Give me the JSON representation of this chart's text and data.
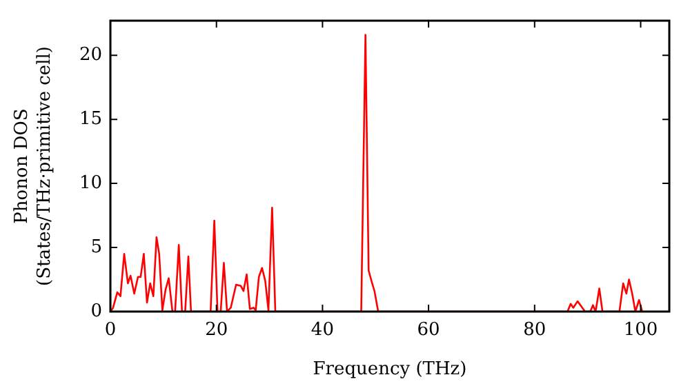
{
  "chart_data": {
    "type": "line",
    "xlabel": "Frequency (THz)",
    "ylabel": "Phonon DOS\n(States/THz·primitive cell)",
    "xlim": [
      0,
      105.4
    ],
    "xticks": [
      0,
      20,
      40,
      60,
      80,
      100
    ],
    "ylim": [
      0,
      22.7
    ],
    "yticks": [
      0,
      5,
      10,
      15,
      20
    ],
    "grid": false,
    "legend": false,
    "marker": "none",
    "line_style": "solid",
    "x": [
      0,
      0.5,
      1.3,
      1.9,
      2.6,
      3.3,
      3.8,
      4.5,
      5.2,
      5.7,
      6.3,
      6.9,
      7.5,
      8.1,
      8.7,
      9.2,
      9.8,
      10.4,
      11.0,
      11.7,
      12.2,
      12.9,
      13.5,
      14.1,
      14.7,
      15.2,
      18.9,
      19.6,
      20.2,
      20.8,
      21.4,
      22.0,
      22.7,
      23.7,
      24.6,
      25.1,
      25.7,
      26.3,
      27.0,
      27.4,
      28.0,
      28.6,
      29.2,
      29.8,
      30.5,
      31.1,
      47.3,
      48.1,
      48.7,
      49.3,
      49.8,
      50.5,
      86.2,
      86.8,
      87.3,
      88.1,
      89.0,
      89.5,
      90.5,
      91.0,
      91.5,
      92.2,
      92.8,
      96.0,
      96.7,
      97.3,
      97.8,
      98.4,
      99.0,
      99.7,
      100.3
    ],
    "series": [
      {
        "color": "#ff0000",
        "values": [
          0,
          0.3,
          1.5,
          1.2,
          4.5,
          2.2,
          2.8,
          1.4,
          2.7,
          2.7,
          4.5,
          0.7,
          2.2,
          1.2,
          5.8,
          4.5,
          0.1,
          1.7,
          2.6,
          0,
          0,
          5.2,
          0,
          0,
          4.3,
          0,
          0,
          7.1,
          0,
          0,
          3.8,
          0,
          0.3,
          2.1,
          2.0,
          1.6,
          2.9,
          0.2,
          0.3,
          0.1,
          2.7,
          3.4,
          2.4,
          0.1,
          8.1,
          0,
          0,
          21.6,
          3.2,
          2.3,
          1.6,
          0,
          0,
          0.6,
          0.3,
          0.8,
          0.3,
          0,
          0,
          0.5,
          0,
          1.8,
          0,
          0,
          2.2,
          1.4,
          2.5,
          1.4,
          0,
          0.9,
          0
        ]
      }
    ]
  }
}
